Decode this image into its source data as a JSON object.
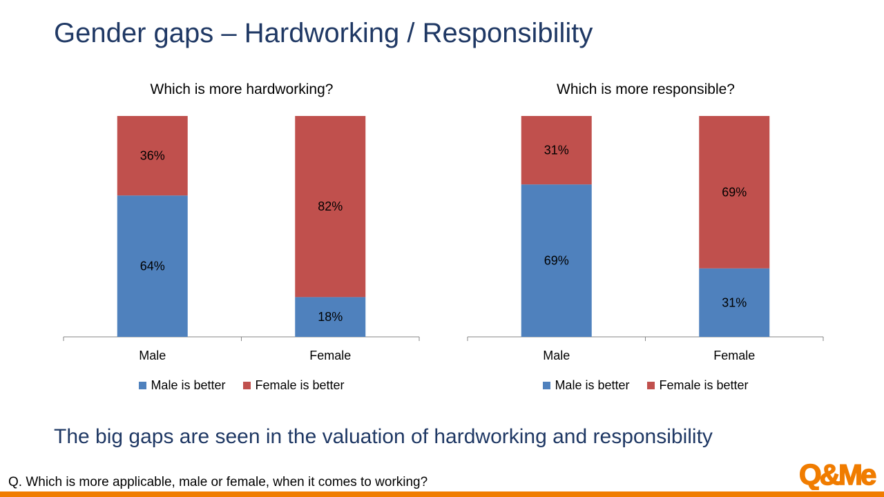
{
  "slide": {
    "title": "Gender gaps – Hardworking / Responsibility",
    "conclusion": "The big gaps are seen in the valuation of hardworking and responsibility",
    "question": "Q. Which is more applicable, male or female, when it comes to working?",
    "logo_text": "Q&Me"
  },
  "colors": {
    "male_is_better": "#4f81bd",
    "female_is_better": "#c0504d",
    "title": "#1f3864",
    "brand": "#f07c00"
  },
  "chart_data": [
    {
      "type": "bar",
      "stacked": true,
      "title": "Which is more hardworking?",
      "categories": [
        "Male",
        "Female"
      ],
      "series": [
        {
          "name": "Male is better",
          "values": [
            64,
            18
          ],
          "labels": [
            "64%",
            "18%"
          ]
        },
        {
          "name": "Female is better",
          "values": [
            36,
            82
          ],
          "labels": [
            "36%",
            "82%"
          ]
        }
      ],
      "ylim": [
        0,
        100
      ],
      "legend": "bottom",
      "grid": false
    },
    {
      "type": "bar",
      "stacked": true,
      "title": "Which is more responsible?",
      "categories": [
        "Male",
        "Female"
      ],
      "series": [
        {
          "name": "Male is better",
          "values": [
            69,
            31
          ],
          "labels": [
            "69%",
            "31%"
          ]
        },
        {
          "name": "Female is better",
          "values": [
            31,
            69
          ],
          "labels": [
            "31%",
            "69%"
          ]
        }
      ],
      "ylim": [
        0,
        100
      ],
      "legend": "bottom",
      "grid": false
    }
  ]
}
